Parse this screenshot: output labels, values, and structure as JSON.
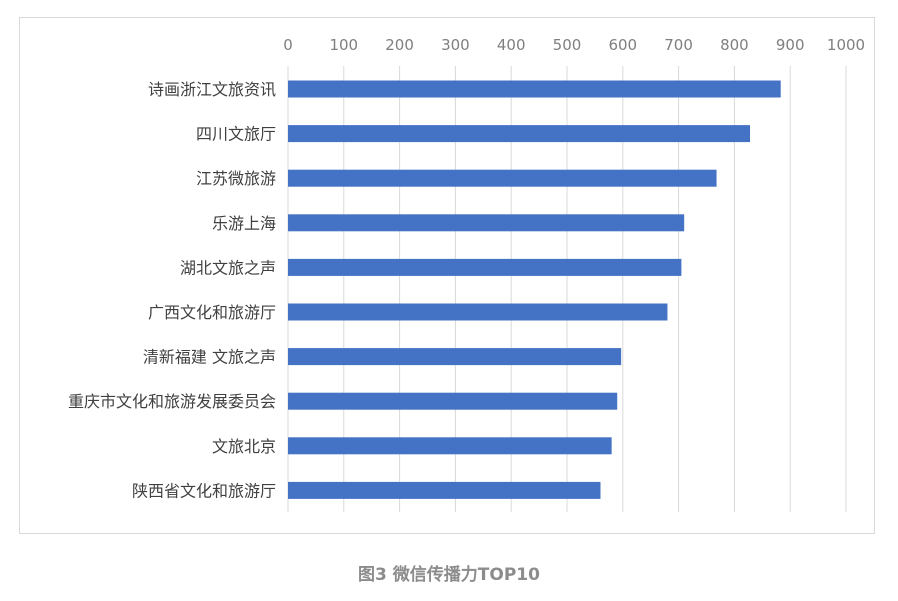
{
  "caption": "图3 微信传播力TOP10",
  "colors": {
    "bar": "#4472c4",
    "grid": "#d9d9d9",
    "tick": "#7f7f7f",
    "label": "#404040"
  },
  "chart_data": {
    "type": "bar",
    "orientation": "horizontal",
    "categories": [
      "诗画浙江文旅资讯",
      "四川文旅厅",
      "江苏微旅游",
      "乐游上海",
      "湖北文旅之声",
      "广西文化和旅游厅",
      "清新福建 文旅之声",
      "重庆市文化和旅游发展委员会",
      "文旅北京",
      "陕西省文化和旅游厅"
    ],
    "values": [
      883,
      828,
      768,
      710,
      705,
      680,
      597,
      590,
      580,
      560
    ],
    "xlim": [
      0,
      1000
    ],
    "xticks": [
      0,
      100,
      200,
      300,
      400,
      500,
      600,
      700,
      800,
      900,
      1000
    ],
    "x_axis_position": "top",
    "grid": true,
    "legend": "none"
  }
}
